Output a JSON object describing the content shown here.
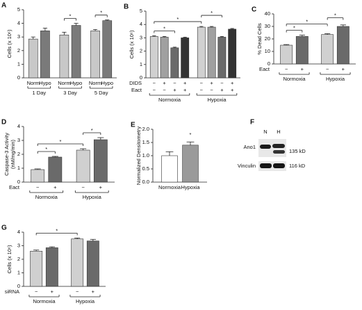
{
  "chart_data": [
    {
      "type": "bar",
      "panel": "A",
      "y_label": [
        "Cells (x 10⁶)"
      ],
      "categories": [
        "Norm",
        "Hypo",
        "Norm",
        "Hypo",
        "Norm",
        "Hypo"
      ],
      "groups": [
        "1 Day",
        "3 Day",
        "5 Day"
      ],
      "values": [
        2.85,
        3.45,
        3.15,
        3.85,
        3.45,
        4.2
      ],
      "errors": [
        0.15,
        0.2,
        0.2,
        0.15,
        0.1,
        0.05
      ],
      "colors": [
        "#c8c8c8",
        "#7a7a7a",
        "#c8c8c8",
        "#7a7a7a",
        "#c8c8c8",
        "#7a7a7a"
      ],
      "ylim": [
        0,
        5
      ],
      "yticks": [
        0,
        1,
        2,
        3,
        4,
        5
      ],
      "annotations": [
        "*",
        "*"
      ]
    },
    {
      "type": "bar",
      "panel": "B",
      "y_label": [
        "Cells (x 10⁶)"
      ],
      "rows": [
        {
          "label": "DIDS",
          "values": [
            "−",
            "+",
            "−",
            "+",
            "−",
            "+",
            "−",
            "+"
          ]
        },
        {
          "label": "Eact",
          "values": [
            "−",
            "−",
            "+",
            "+",
            "−",
            "−",
            "+",
            "+"
          ]
        }
      ],
      "groups": [
        "Normoxia",
        "Hypoxia"
      ],
      "values": [
        3.1,
        3.05,
        2.25,
        3.0,
        3.8,
        3.8,
        3.05,
        3.65
      ],
      "errors": [
        0.05,
        0.05,
        0.05,
        0.05,
        0.05,
        0.05,
        0.05,
        0.05
      ],
      "colors": [
        "#d0d0d0",
        "#a0a0a0",
        "#6a6a6a",
        "#333333",
        "#d0d0d0",
        "#a0a0a0",
        "#6a6a6a",
        "#333333"
      ],
      "ylim": [
        0,
        5
      ],
      "yticks": [
        0,
        1,
        2,
        3,
        4,
        5
      ],
      "annotations": [
        "*",
        "*",
        "*"
      ]
    },
    {
      "type": "bar",
      "panel": "C",
      "y_label": [
        "% Dead Cells"
      ],
      "rows": [
        {
          "label": "Eact",
          "values": [
            "−",
            "+",
            "−",
            "+"
          ]
        }
      ],
      "groups": [
        "Normoxia",
        "Hypoxia"
      ],
      "values": [
        15,
        22,
        23.5,
        30
      ],
      "errors": [
        0.5,
        1,
        0.7,
        1.2
      ],
      "colors": [
        "#d0d0d0",
        "#6a6a6a",
        "#d0d0d0",
        "#6a6a6a"
      ],
      "ylim": [
        0,
        40
      ],
      "yticks": [
        0,
        10,
        20,
        30,
        40
      ],
      "annotations": [
        "*",
        "*",
        "*"
      ]
    },
    {
      "type": "bar",
      "panel": "D",
      "y_label": [
        "Caspase-3 Activity",
        "(nM/mg/min)"
      ],
      "rows": [
        {
          "label": "Eact",
          "values": [
            "−",
            "+",
            "−",
            "+"
          ]
        }
      ],
      "groups": [
        "Normoxia",
        "Hypoxia"
      ],
      "values": [
        0.9,
        1.8,
        2.3,
        3.05
      ],
      "errors": [
        0.05,
        0.05,
        0.1,
        0.15
      ],
      "colors": [
        "#d0d0d0",
        "#6a6a6a",
        "#d0d0d0",
        "#6a6a6a"
      ],
      "ylim": [
        0,
        4
      ],
      "yticks": [
        0,
        1,
        2,
        3,
        4
      ],
      "annotations": [
        "*",
        "*",
        "*"
      ]
    },
    {
      "type": "bar",
      "panel": "E",
      "y_label": [
        "Normalized Densitometry"
      ],
      "categories": [
        "Normoxia",
        "Hypoxia"
      ],
      "values": [
        1.0,
        1.4
      ],
      "errors": [
        0.15,
        0.12
      ],
      "colors": [
        "#ffffff",
        "#9a9a9a"
      ],
      "ylim": [
        0,
        2
      ],
      "yticks": [
        {
          "value": 0,
          "label": "0.0"
        },
        {
          "value": 0.5,
          "label": "0.5"
        },
        {
          "value": 1,
          "label": "1.0"
        },
        {
          "value": 1.5,
          "label": "1.5"
        },
        {
          "value": 2,
          "label": "2.0"
        }
      ],
      "annotations": [
        "*"
      ]
    },
    {
      "type": "bar",
      "panel": "G",
      "y_label": [
        "Cells (x 10⁶)"
      ],
      "rows": [
        {
          "label": "siRNA",
          "values": [
            "−",
            "+",
            "−",
            "+"
          ]
        }
      ],
      "groups": [
        "Normoxia",
        "Hypoxia"
      ],
      "values": [
        2.6,
        2.85,
        3.5,
        3.35
      ],
      "errors": [
        0.08,
        0.07,
        0.07,
        0.12
      ],
      "colors": [
        "#d0d0d0",
        "#6a6a6a",
        "#d0d0d0",
        "#6a6a6a"
      ],
      "ylim": [
        0,
        4
      ],
      "yticks": [
        0,
        1,
        2,
        3,
        4
      ],
      "annotations": [
        "*"
      ]
    }
  ],
  "blot": {
    "panel": "F",
    "lanes": [
      "N",
      "H"
    ],
    "bands": [
      {
        "label": "Ano1",
        "size": "135 kD"
      },
      {
        "label": "Vinculin",
        "size": "116 kD"
      }
    ]
  }
}
